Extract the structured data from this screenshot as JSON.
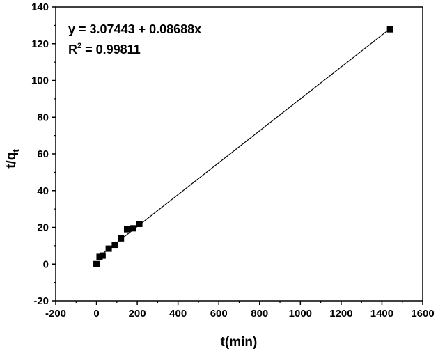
{
  "chart_data": {
    "type": "scatter",
    "xlabel": "t(min)",
    "ylabel": {
      "main": "t/q",
      "sub": "t"
    },
    "xlim": [
      -200,
      1600
    ],
    "ylim": [
      -20,
      140
    ],
    "xticks": [
      -200,
      0,
      200,
      400,
      600,
      800,
      1000,
      1200,
      1400,
      1600
    ],
    "yticks": [
      -20,
      0,
      20,
      40,
      60,
      80,
      100,
      120,
      140
    ],
    "grid": false,
    "series": [
      {
        "points": [
          [
            0,
            0
          ],
          [
            15,
            3.9
          ],
          [
            30,
            4.6
          ],
          [
            60,
            8.4
          ],
          [
            90,
            10.5
          ],
          [
            120,
            14.0
          ],
          [
            150,
            19.0
          ],
          [
            180,
            19.5
          ],
          [
            210,
            21.9
          ],
          [
            1440,
            127.8
          ]
        ],
        "marker": "square",
        "color": "#000000"
      }
    ],
    "fit": {
      "intercept": 3.07443,
      "slope": 0.08688,
      "x_range": [
        0,
        1440
      ],
      "color": "#000000"
    },
    "annotations": {
      "equation": "y = 3.07443 + 0.08688x",
      "r2_label": "R",
      "r2_sup": "2",
      "r2_value": " = 0.99811"
    }
  }
}
